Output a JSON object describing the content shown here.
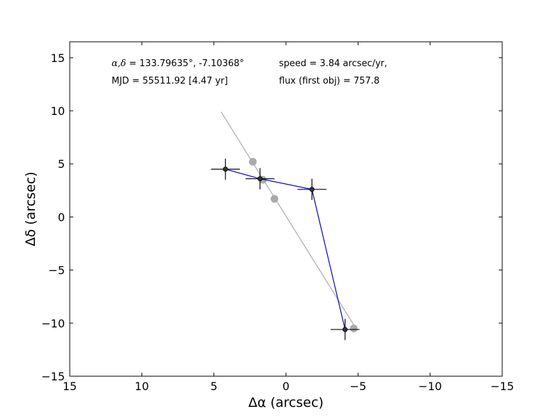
{
  "chart_data": {
    "type": "scatter",
    "title": "",
    "xlabel": "Δα (arcsec)",
    "ylabel": "Δδ (arcsec)",
    "xlim": [
      15,
      -15
    ],
    "ylim": [
      -15,
      16.5
    ],
    "xticks": [
      15,
      10,
      5,
      0,
      -5,
      -10,
      -15
    ],
    "yticks": [
      15,
      10,
      5,
      0,
      -5,
      -10,
      -15
    ],
    "xtick_labels": [
      "15",
      "10",
      "5",
      "0",
      "−5",
      "−10",
      "−15"
    ],
    "ytick_labels": [
      "15",
      "10",
      "5",
      "0",
      "−5",
      "−10",
      "−15"
    ],
    "grid": false,
    "annotations": {
      "coords_math": "α,δ",
      "coords_value": " = 133.79635°, -7.10368°",
      "mjd": "MJD = 55511.92 [4.47 yr]",
      "speed": "speed = 3.84 arcsec/yr,",
      "flux": "flux (first obj) = 757.8"
    },
    "series": [
      {
        "color": "#0000cc",
        "style": "line-with-errorbars",
        "x": [
          4.2,
          1.8,
          -1.8,
          -4.1
        ],
        "y": [
          4.5,
          3.6,
          2.6,
          -10.6
        ],
        "xerr": [
          1.0,
          1.0,
          1.0,
          1.0
        ],
        "yerr": [
          1.0,
          1.0,
          1.0,
          1.0
        ]
      },
      {
        "color": "#aaaaaa",
        "style": "line",
        "x": [
          4.5,
          -4.9
        ],
        "y": [
          9.9,
          -10.6
        ]
      },
      {
        "color": "#aaaaaa",
        "style": "markers",
        "x": [
          2.3,
          1.6,
          0.8,
          -4.7
        ],
        "y": [
          5.2,
          3.5,
          1.7,
          -10.5
        ]
      }
    ]
  }
}
